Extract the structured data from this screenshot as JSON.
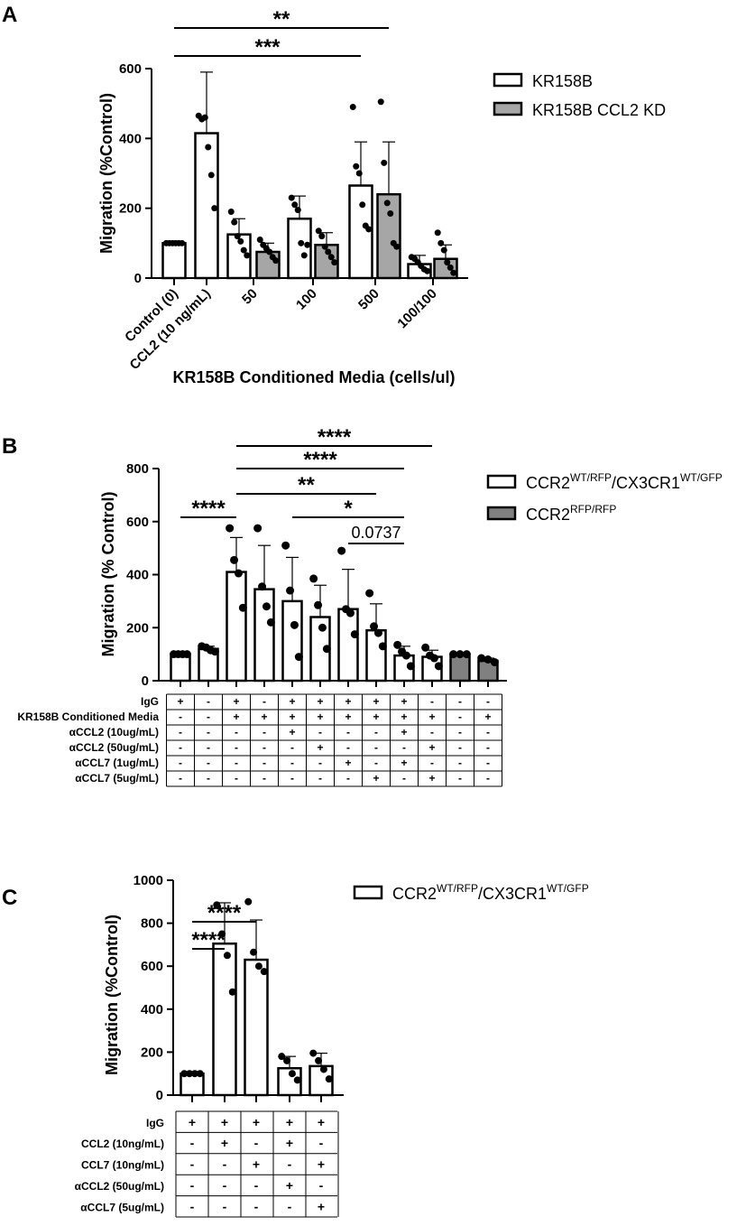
{
  "panels": [
    {
      "letter": "A",
      "ylabel": "Migration (%Control)",
      "xlabel": "KR158B Conditioned Media (cells/ul)",
      "yticks": [
        "0",
        "200",
        "400",
        "600"
      ],
      "ymax": 600,
      "categories": [
        "Control (0)",
        "CCL2 (10 ng/mL)",
        "50",
        "100",
        "500",
        "100/100"
      ],
      "legend": [
        {
          "name": "KR158B",
          "color": "#ffffff"
        },
        {
          "name": "KR158B CCL2 KD",
          "color": "#a6a6a6"
        }
      ],
      "significance": [
        {
          "label": "**",
          "from_bar": 0,
          "to_bar": 7
        },
        {
          "label": "***",
          "from_bar": 0,
          "to_bar": 6
        }
      ]
    },
    {
      "letter": "B",
      "ylabel": "Migration (% Control)",
      "yticks": [
        "0",
        "200",
        "400",
        "600",
        "800"
      ],
      "ymax": 800,
      "legend": [
        {
          "name": "CCR2",
          "sup": "WT/RFP",
          "name2": "/CX3CR1",
          "sup2": "WT/GFP",
          "color": "#ffffff"
        },
        {
          "name": "CCR2",
          "sup": "RFP/RFP",
          "name2": "",
          "sup2": "",
          "color": "#808080"
        }
      ],
      "significance": [
        {
          "label": "****",
          "from_bar": 0,
          "to_bar": 2
        },
        {
          "label": "****",
          "from_bar": 2,
          "to_bar": 9
        },
        {
          "label": "****",
          "from_bar": 2,
          "to_bar": 8
        },
        {
          "label": "**",
          "from_bar": 2,
          "to_bar": 7
        },
        {
          "label": "*",
          "from_bar": 4,
          "to_bar": 8
        },
        {
          "label": "0.0737",
          "from_bar": 6,
          "to_bar": 8
        }
      ],
      "table": {
        "rows": [
          {
            "label": "IgG",
            "cells": [
              "+",
              "-",
              "+",
              "-",
              "+",
              "+",
              "+",
              "+",
              "+",
              "-",
              "-",
              "-"
            ]
          },
          {
            "label": "KR158B Conditioned Media",
            "cells": [
              "-",
              "-",
              "+",
              "+",
              "+",
              "+",
              "+",
              "+",
              "+",
              "+",
              "-",
              "+"
            ]
          },
          {
            "label": "αCCL2 (10ug/mL)",
            "cells": [
              "-",
              "-",
              "-",
              "-",
              "+",
              "-",
              "-",
              "-",
              "+",
              "-",
              "-",
              "-"
            ]
          },
          {
            "label": "αCCL2 (50ug/mL)",
            "cells": [
              "-",
              "-",
              "-",
              "-",
              "-",
              "+",
              "-",
              "-",
              "-",
              "+",
              "-",
              "-"
            ]
          },
          {
            "label": "αCCL7 (1ug/mL)",
            "cells": [
              "-",
              "-",
              "-",
              "-",
              "-",
              "-",
              "+",
              "-",
              "+",
              "-",
              "-",
              "-"
            ]
          },
          {
            "label": "αCCL7 (5ug/mL)",
            "cells": [
              "-",
              "-",
              "-",
              "-",
              "-",
              "-",
              "-",
              "+",
              "-",
              "+",
              "-",
              "-"
            ]
          }
        ]
      }
    },
    {
      "letter": "C",
      "ylabel": "Migration (%Control)",
      "yticks": [
        "0",
        "200",
        "400",
        "600",
        "800",
        "1000"
      ],
      "ymax": 1000,
      "legend": [
        {
          "name": "CCR2",
          "sup": "WT/RFP",
          "name2": "/CX3CR1",
          "sup2": "WT/GFP",
          "color": "#ffffff"
        }
      ],
      "significance": [
        {
          "label": "****",
          "from_bar": 0,
          "to_bar": 2
        },
        {
          "label": "****",
          "from_bar": 0,
          "to_bar": 1
        }
      ],
      "table": {
        "rows": [
          {
            "label": "IgG",
            "cells": [
              "+",
              "+",
              "+",
              "+",
              "+"
            ]
          },
          {
            "label": "CCL2 (10ng/mL)",
            "cells": [
              "-",
              "+",
              "-",
              "+",
              "-"
            ]
          },
          {
            "label": "CCL7 (10ng/mL)",
            "cells": [
              "-",
              "-",
              "+",
              "-",
              "+"
            ]
          },
          {
            "label": "αCCL2 (50ug/mL)",
            "cells": [
              "-",
              "-",
              "-",
              "+",
              "-"
            ]
          },
          {
            "label": "αCCL7 (5ug/mL)",
            "cells": [
              "-",
              "-",
              "-",
              "-",
              "+"
            ]
          }
        ]
      }
    }
  ],
  "chart_data": [
    {
      "type": "bar",
      "panel": "A",
      "ylabel": "Migration (%Control)",
      "xlabel": "KR158B Conditioned Media (cells/ul)",
      "ylim": [
        0,
        600
      ],
      "bars": [
        {
          "category": "Control (0)",
          "series": "KR158B",
          "value": 100,
          "sd": 0,
          "points": [
            100,
            100,
            100,
            100,
            100,
            100
          ]
        },
        {
          "category": "CCL2 (10 ng/mL)",
          "series": "KR158B",
          "value": 415,
          "sd": 175,
          "points": [
            465,
            455,
            460,
            375,
            295,
            200
          ]
        },
        {
          "category": "50",
          "series": "KR158B",
          "value": 125,
          "sd": 45,
          "points": [
            190,
            160,
            120,
            105,
            80,
            65
          ]
        },
        {
          "category": "50",
          "series": "KR158B CCL2 KD",
          "value": 75,
          "sd": 25,
          "points": [
            110,
            95,
            85,
            75,
            60,
            50
          ]
        },
        {
          "category": "100",
          "series": "KR158B",
          "value": 170,
          "sd": 65,
          "points": [
            230,
            210,
            195,
            100,
            65,
            95
          ]
        },
        {
          "category": "100",
          "series": "KR158B CCL2 KD",
          "value": 95,
          "sd": 35,
          "points": [
            135,
            120,
            90,
            75,
            60,
            45
          ]
        },
        {
          "category": "500",
          "series": "KR158B",
          "value": 265,
          "sd": 125,
          "points": [
            490,
            320,
            300,
            210,
            150,
            140
          ]
        },
        {
          "category": "500",
          "series": "KR158B CCL2 KD",
          "value": 240,
          "sd": 150,
          "points": [
            505,
            330,
            215,
            185,
            100,
            90
          ]
        },
        {
          "category": "100/100",
          "series": "KR158B",
          "value": 40,
          "sd": 25,
          "points": [
            60,
            55,
            45,
            35,
            25,
            20
          ]
        },
        {
          "category": "100/100",
          "series": "KR158B CCL2 KD",
          "value": 55,
          "sd": 40,
          "points": [
            130,
            100,
            80,
            45,
            30,
            15
          ]
        }
      ]
    },
    {
      "type": "bar",
      "panel": "B",
      "ylabel": "Migration (% Control)",
      "ylim": [
        0,
        800
      ],
      "bars": [
        {
          "series": "CCR2WT/RFP/CX3CR1WT/GFP",
          "value": 100,
          "sd": 0,
          "points": [
            100,
            100,
            100,
            100
          ]
        },
        {
          "series": "CCR2WT/RFP/CX3CR1WT/GFP",
          "value": 120,
          "sd": 10,
          "points": [
            130,
            125,
            115,
            110
          ]
        },
        {
          "series": "CCR2WT/RFP/CX3CR1WT/GFP",
          "value": 410,
          "sd": 130,
          "points": [
            575,
            455,
            405,
            275
          ]
        },
        {
          "series": "CCR2WT/RFP/CX3CR1WT/GFP",
          "value": 345,
          "sd": 165,
          "points": [
            575,
            355,
            280,
            220
          ]
        },
        {
          "series": "CCR2WT/RFP/CX3CR1WT/GFP",
          "value": 300,
          "sd": 165,
          "points": [
            510,
            340,
            210,
            90
          ]
        },
        {
          "series": "CCR2WT/RFP/CX3CR1WT/GFP",
          "value": 240,
          "sd": 120,
          "points": [
            385,
            285,
            200,
            120
          ]
        },
        {
          "series": "CCR2WT/RFP/CX3CR1WT/GFP",
          "value": 270,
          "sd": 150,
          "points": [
            490,
            270,
            255,
            175
          ]
        },
        {
          "series": "CCR2WT/RFP/CX3CR1WT/GFP",
          "value": 190,
          "sd": 100,
          "points": [
            330,
            205,
            180,
            130
          ]
        },
        {
          "series": "CCR2WT/RFP/CX3CR1WT/GFP",
          "value": 95,
          "sd": 35,
          "points": [
            135,
            110,
            95,
            55
          ]
        },
        {
          "series": "CCR2WT/RFP/CX3CR1WT/GFP",
          "value": 90,
          "sd": 25,
          "points": [
            125,
            95,
            85,
            55
          ]
        },
        {
          "series": "CCR2RFP/RFP",
          "value": 100,
          "sd": 0,
          "points": [
            100,
            100,
            100
          ]
        },
        {
          "series": "CCR2RFP/RFP",
          "value": 75,
          "sd": 10,
          "points": [
            85,
            80,
            70
          ]
        }
      ]
    },
    {
      "type": "bar",
      "panel": "C",
      "ylabel": "Migration (%Control)",
      "ylim": [
        0,
        1000
      ],
      "bars": [
        {
          "series": "CCR2WT/RFP/CX3CR1WT/GFP",
          "value": 100,
          "sd": 0,
          "points": [
            100,
            100,
            100,
            100
          ]
        },
        {
          "series": "CCR2WT/RFP/CX3CR1WT/GFP",
          "value": 705,
          "sd": 190,
          "points": [
            885,
            750,
            650,
            480
          ]
        },
        {
          "series": "CCR2WT/RFP/CX3CR1WT/GFP",
          "value": 630,
          "sd": 185,
          "points": [
            900,
            665,
            600,
            575
          ]
        },
        {
          "series": "CCR2WT/RFP/CX3CR1WT/GFP",
          "value": 125,
          "sd": 55,
          "points": [
            180,
            160,
            100,
            70
          ]
        },
        {
          "series": "CCR2WT/RFP/CX3CR1WT/GFP",
          "value": 135,
          "sd": 60,
          "points": [
            195,
            160,
            120,
            75
          ]
        }
      ]
    }
  ]
}
